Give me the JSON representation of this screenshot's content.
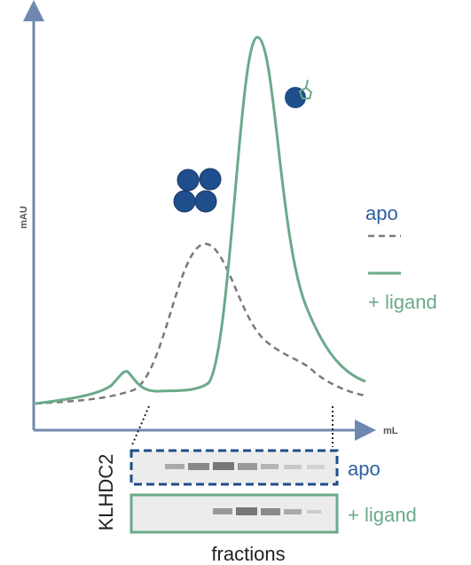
{
  "plot": {
    "y_label": "mAU",
    "x_label": "mL"
  },
  "legend": {
    "apo": "apo",
    "ligand": "+ ligand"
  },
  "gel": {
    "protein": "KLHDC2",
    "apo": "apo",
    "ligand": "+ ligand",
    "x_label": "fractions"
  }
}
